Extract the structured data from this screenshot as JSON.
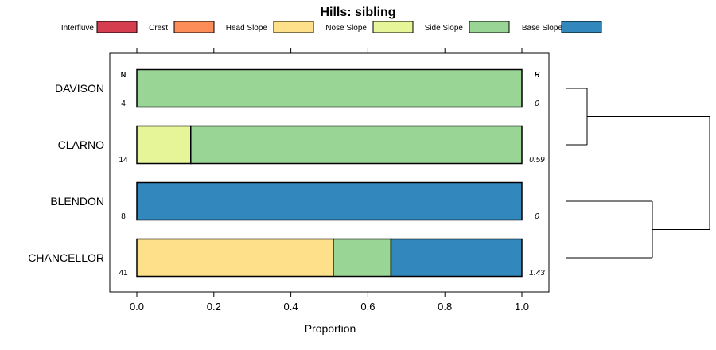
{
  "chart_data": {
    "type": "bar",
    "orientation": "horizontal",
    "stacked": true,
    "title": "Hills: sibling",
    "xlabel": "Proportion",
    "ylabel": "",
    "xlim": [
      0,
      1
    ],
    "x_ticks": [
      "0.0",
      "0.2",
      "0.4",
      "0.6",
      "0.8",
      "1.0"
    ],
    "legend": {
      "placement": "top",
      "entries": [
        {
          "name": "Interfluve",
          "color": "#D53E4F"
        },
        {
          "name": "Crest",
          "color": "#FC8D59"
        },
        {
          "name": "Head Slope",
          "color": "#FEE08B"
        },
        {
          "name": "Nose Slope",
          "color": "#E6F598"
        },
        {
          "name": "Side Slope",
          "color": "#99D594"
        },
        {
          "name": "Base Slope",
          "color": "#3288BD"
        }
      ]
    },
    "n_header": "N",
    "h_header": "H",
    "categories": [
      "DAVISON",
      "CLARNO",
      "BLENDON",
      "CHANCELLOR"
    ],
    "n_values": [
      "4",
      "14",
      "8",
      "41"
    ],
    "h_values": [
      "0",
      "0.59",
      "0",
      "1.43"
    ],
    "series": [
      {
        "name": "Interfluve",
        "values": [
          0,
          0,
          0,
          0
        ]
      },
      {
        "name": "Crest",
        "values": [
          0,
          0,
          0,
          0
        ]
      },
      {
        "name": "Head Slope",
        "values": [
          0,
          0,
          0,
          0.51
        ]
      },
      {
        "name": "Nose Slope",
        "values": [
          0,
          0.14,
          0,
          0
        ]
      },
      {
        "name": "Side Slope",
        "values": [
          1.0,
          0.86,
          0,
          0.15
        ]
      },
      {
        "name": "Base Slope",
        "values": [
          0,
          0,
          1.0,
          0.34
        ]
      }
    ],
    "dendrogram": {
      "merges": [
        [
          "DAVISON",
          "CLARNO"
        ],
        [
          "BLENDON",
          "CHANCELLOR"
        ],
        [
          "DAVISON+CLARNO",
          "BLENDON+CHANCELLOR"
        ]
      ]
    }
  }
}
